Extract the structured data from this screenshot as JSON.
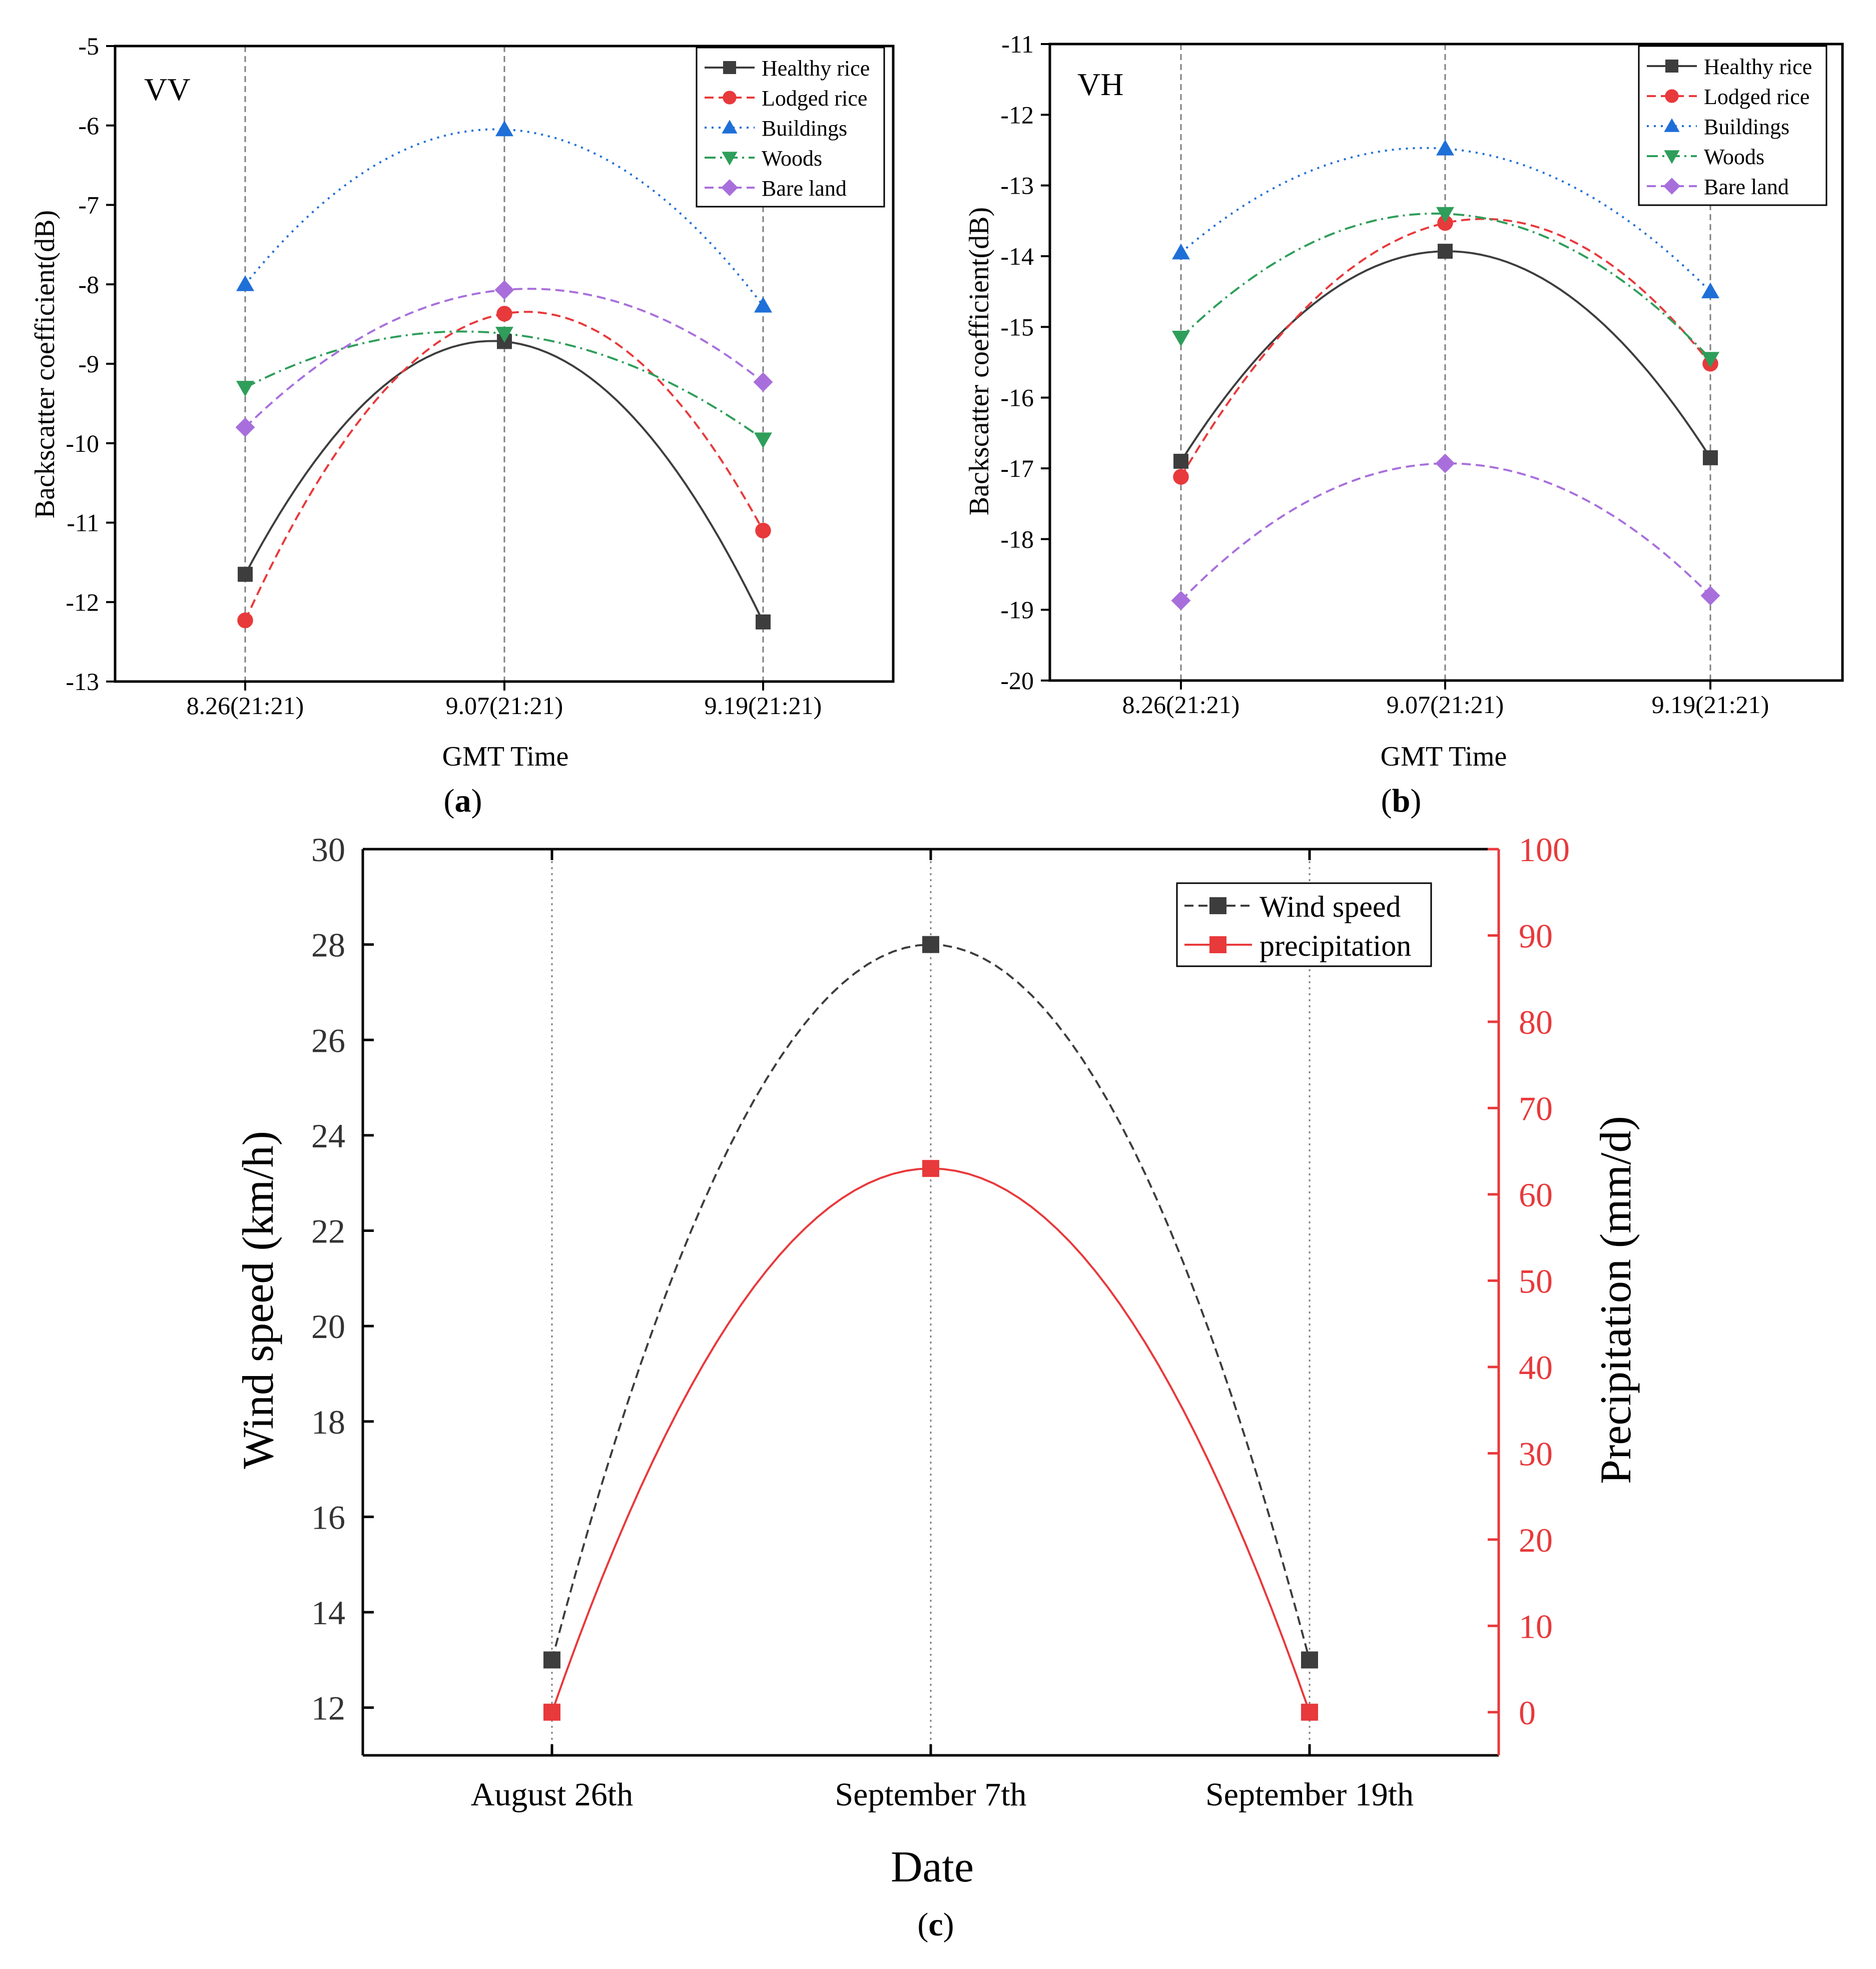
{
  "colors": {
    "axis": "#000000",
    "guide": "#808080",
    "precip_axis": "#e8393b"
  },
  "chart_data": [
    {
      "panel": "a",
      "panel_label": "a",
      "type": "line",
      "corner_label": "VV",
      "ylabel": "Backscatter coefficient(dB)",
      "xlabel": "GMT Time",
      "categories": [
        "8.26(21:21)",
        "9.07(21:21)",
        "9.19(21:21)"
      ],
      "ylim": [
        -13,
        -5
      ],
      "yticks": [
        -5,
        -6,
        -7,
        -8,
        -9,
        -10,
        -11,
        -12,
        -13
      ],
      "legend_position": "top-right",
      "series": [
        {
          "name": "Healthy rice",
          "values": [
            -11.65,
            -8.72,
            -12.25
          ],
          "color": "#3d3d3d",
          "marker": "square",
          "dash": "solid"
        },
        {
          "name": "Lodged rice",
          "values": [
            -12.23,
            -8.37,
            -11.1
          ],
          "color": "#e8393b",
          "marker": "circle",
          "dash": "dashed"
        },
        {
          "name": "Buildings",
          "values": [
            -8.0,
            -6.05,
            -8.27
          ],
          "color": "#1f6fd8",
          "marker": "triangle-up",
          "dash": "dotted"
        },
        {
          "name": "Woods",
          "values": [
            -9.3,
            -8.62,
            -9.95
          ],
          "color": "#2e9e5a",
          "marker": "triangle-down",
          "dash": "dashdot"
        },
        {
          "name": "Bare land",
          "values": [
            -9.8,
            -8.07,
            -9.23
          ],
          "color": "#a86fdc",
          "marker": "diamond",
          "dash": "dashed"
        }
      ]
    },
    {
      "panel": "b",
      "panel_label": "b",
      "type": "line",
      "corner_label": "VH",
      "ylabel": "Backscatter coefficient(dB)",
      "xlabel": "GMT Time",
      "categories": [
        "8.26(21:21)",
        "9.07(21:21)",
        "9.19(21:21)"
      ],
      "ylim": [
        -20,
        -11
      ],
      "yticks": [
        -11,
        -12,
        -13,
        -14,
        -15,
        -16,
        -17,
        -18,
        -19,
        -20
      ],
      "legend_position": "top-right",
      "series": [
        {
          "name": "Healthy rice",
          "values": [
            -16.9,
            -13.93,
            -16.85
          ],
          "color": "#3d3d3d",
          "marker": "square",
          "dash": "solid"
        },
        {
          "name": "Lodged rice",
          "values": [
            -17.12,
            -13.53,
            -15.52
          ],
          "color": "#e8393b",
          "marker": "circle",
          "dash": "dashed"
        },
        {
          "name": "Buildings",
          "values": [
            -13.95,
            -12.48,
            -14.5
          ],
          "color": "#1f6fd8",
          "marker": "triangle-up",
          "dash": "dotted"
        },
        {
          "name": "Woods",
          "values": [
            -15.15,
            -13.4,
            -15.45
          ],
          "color": "#2e9e5a",
          "marker": "triangle-down",
          "dash": "dashdot"
        },
        {
          "name": "Bare land",
          "values": [
            -18.87,
            -16.93,
            -18.8
          ],
          "color": "#a86fdc",
          "marker": "diamond",
          "dash": "dashed"
        }
      ]
    },
    {
      "panel": "c",
      "panel_label": "c",
      "type": "line",
      "xlabel": "Date",
      "categories": [
        "August 26th",
        "September 7th",
        "September 19th"
      ],
      "ylabel": "Wind speed (km/h)",
      "ylim": [
        11,
        30
      ],
      "yticks": [
        12,
        14,
        16,
        18,
        20,
        22,
        24,
        26,
        28,
        30
      ],
      "ylabel_right": "Precipitation (mm/d)",
      "ylim_right": [
        -5,
        100
      ],
      "yticks_right": [
        0,
        10,
        20,
        30,
        40,
        50,
        60,
        70,
        80,
        90,
        100
      ],
      "legend_position": "top-right",
      "series": [
        {
          "name": "Wind speed",
          "axis": "left",
          "values": [
            13,
            28,
            13
          ],
          "color": "#3d3d3d",
          "marker": "square",
          "dash": "dashed"
        },
        {
          "name": "precipitation",
          "axis": "right",
          "values": [
            0,
            63,
            0
          ],
          "color": "#e8393b",
          "marker": "square",
          "dash": "solid"
        }
      ]
    }
  ]
}
